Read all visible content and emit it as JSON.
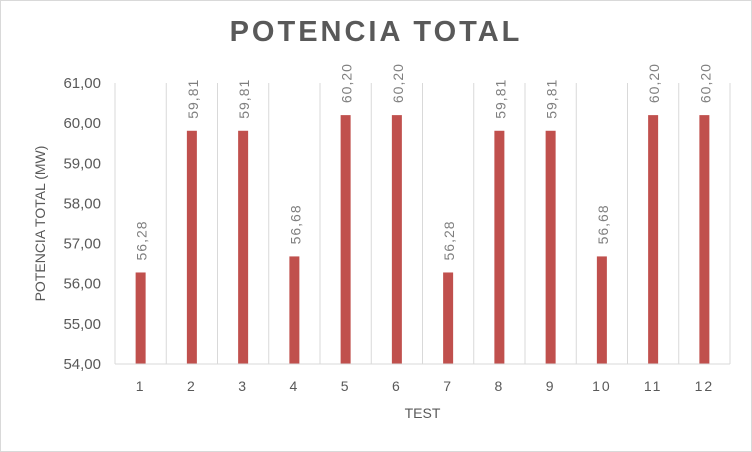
{
  "chart_data": {
    "type": "bar",
    "title": "POTENCIA  TOTAL",
    "xlabel": "TEST",
    "ylabel": "POTENCIA TOTAL (MW)",
    "categories": [
      "1",
      "2",
      "3",
      "4",
      "5",
      "6",
      "7",
      "8",
      "9",
      "10",
      "11",
      "12"
    ],
    "values": [
      56.28,
      59.81,
      59.81,
      56.68,
      60.2,
      60.2,
      56.28,
      59.81,
      59.81,
      56.68,
      60.2,
      60.2
    ],
    "data_labels": [
      "56,28",
      "59,81",
      "59,81",
      "56,68",
      "60,20",
      "60,20",
      "56,28",
      "59,81",
      "59,81",
      "56,68",
      "60,20",
      "60,20"
    ],
    "ylim": [
      54,
      61
    ],
    "yticks": [
      "54,00",
      "55,00",
      "56,00",
      "57,00",
      "58,00",
      "59,00",
      "60,00",
      "61,00"
    ],
    "grid": "vertical category gridlines",
    "legend": "none",
    "bar_color": "#c0504d"
  }
}
